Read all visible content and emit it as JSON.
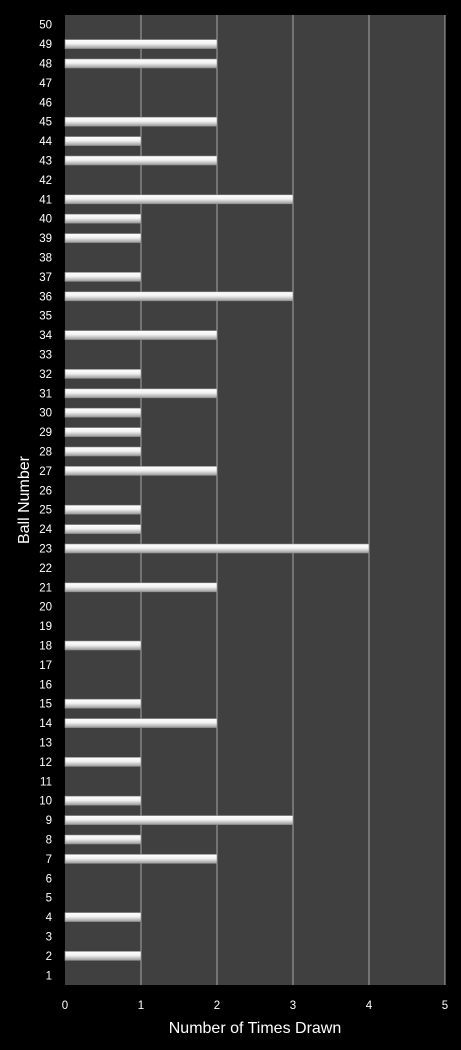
{
  "chart_data": {
    "type": "bar",
    "orientation": "horizontal",
    "xlabel": "Number of Times Drawn",
    "ylabel": "Ball Number",
    "xlim": [
      0,
      5
    ],
    "x_ticks": [
      "0",
      "1",
      "2",
      "3",
      "4",
      "5"
    ],
    "grid": "vertical",
    "legend": "none",
    "colors": {
      "background": "#000000",
      "plot_area": "#404040",
      "bar": "#e6e6e6",
      "gridline": "#a6a6a6",
      "text": "#ffffff"
    },
    "categories": [
      "1",
      "2",
      "3",
      "4",
      "5",
      "6",
      "7",
      "8",
      "9",
      "10",
      "11",
      "12",
      "13",
      "14",
      "15",
      "16",
      "17",
      "18",
      "19",
      "20",
      "21",
      "22",
      "23",
      "24",
      "25",
      "26",
      "27",
      "28",
      "29",
      "30",
      "31",
      "32",
      "33",
      "34",
      "35",
      "36",
      "37",
      "38",
      "39",
      "40",
      "41",
      "42",
      "43",
      "44",
      "45",
      "46",
      "47",
      "48",
      "49",
      "50"
    ],
    "values": [
      0,
      1,
      0,
      1,
      0,
      0,
      2,
      1,
      3,
      1,
      0,
      1,
      0,
      2,
      1,
      0,
      0,
      1,
      0,
      0,
      2,
      0,
      4,
      1,
      1,
      0,
      2,
      1,
      1,
      1,
      2,
      1,
      0,
      2,
      0,
      3,
      1,
      0,
      1,
      1,
      3,
      0,
      2,
      1,
      2,
      0,
      0,
      2,
      2,
      0
    ]
  }
}
